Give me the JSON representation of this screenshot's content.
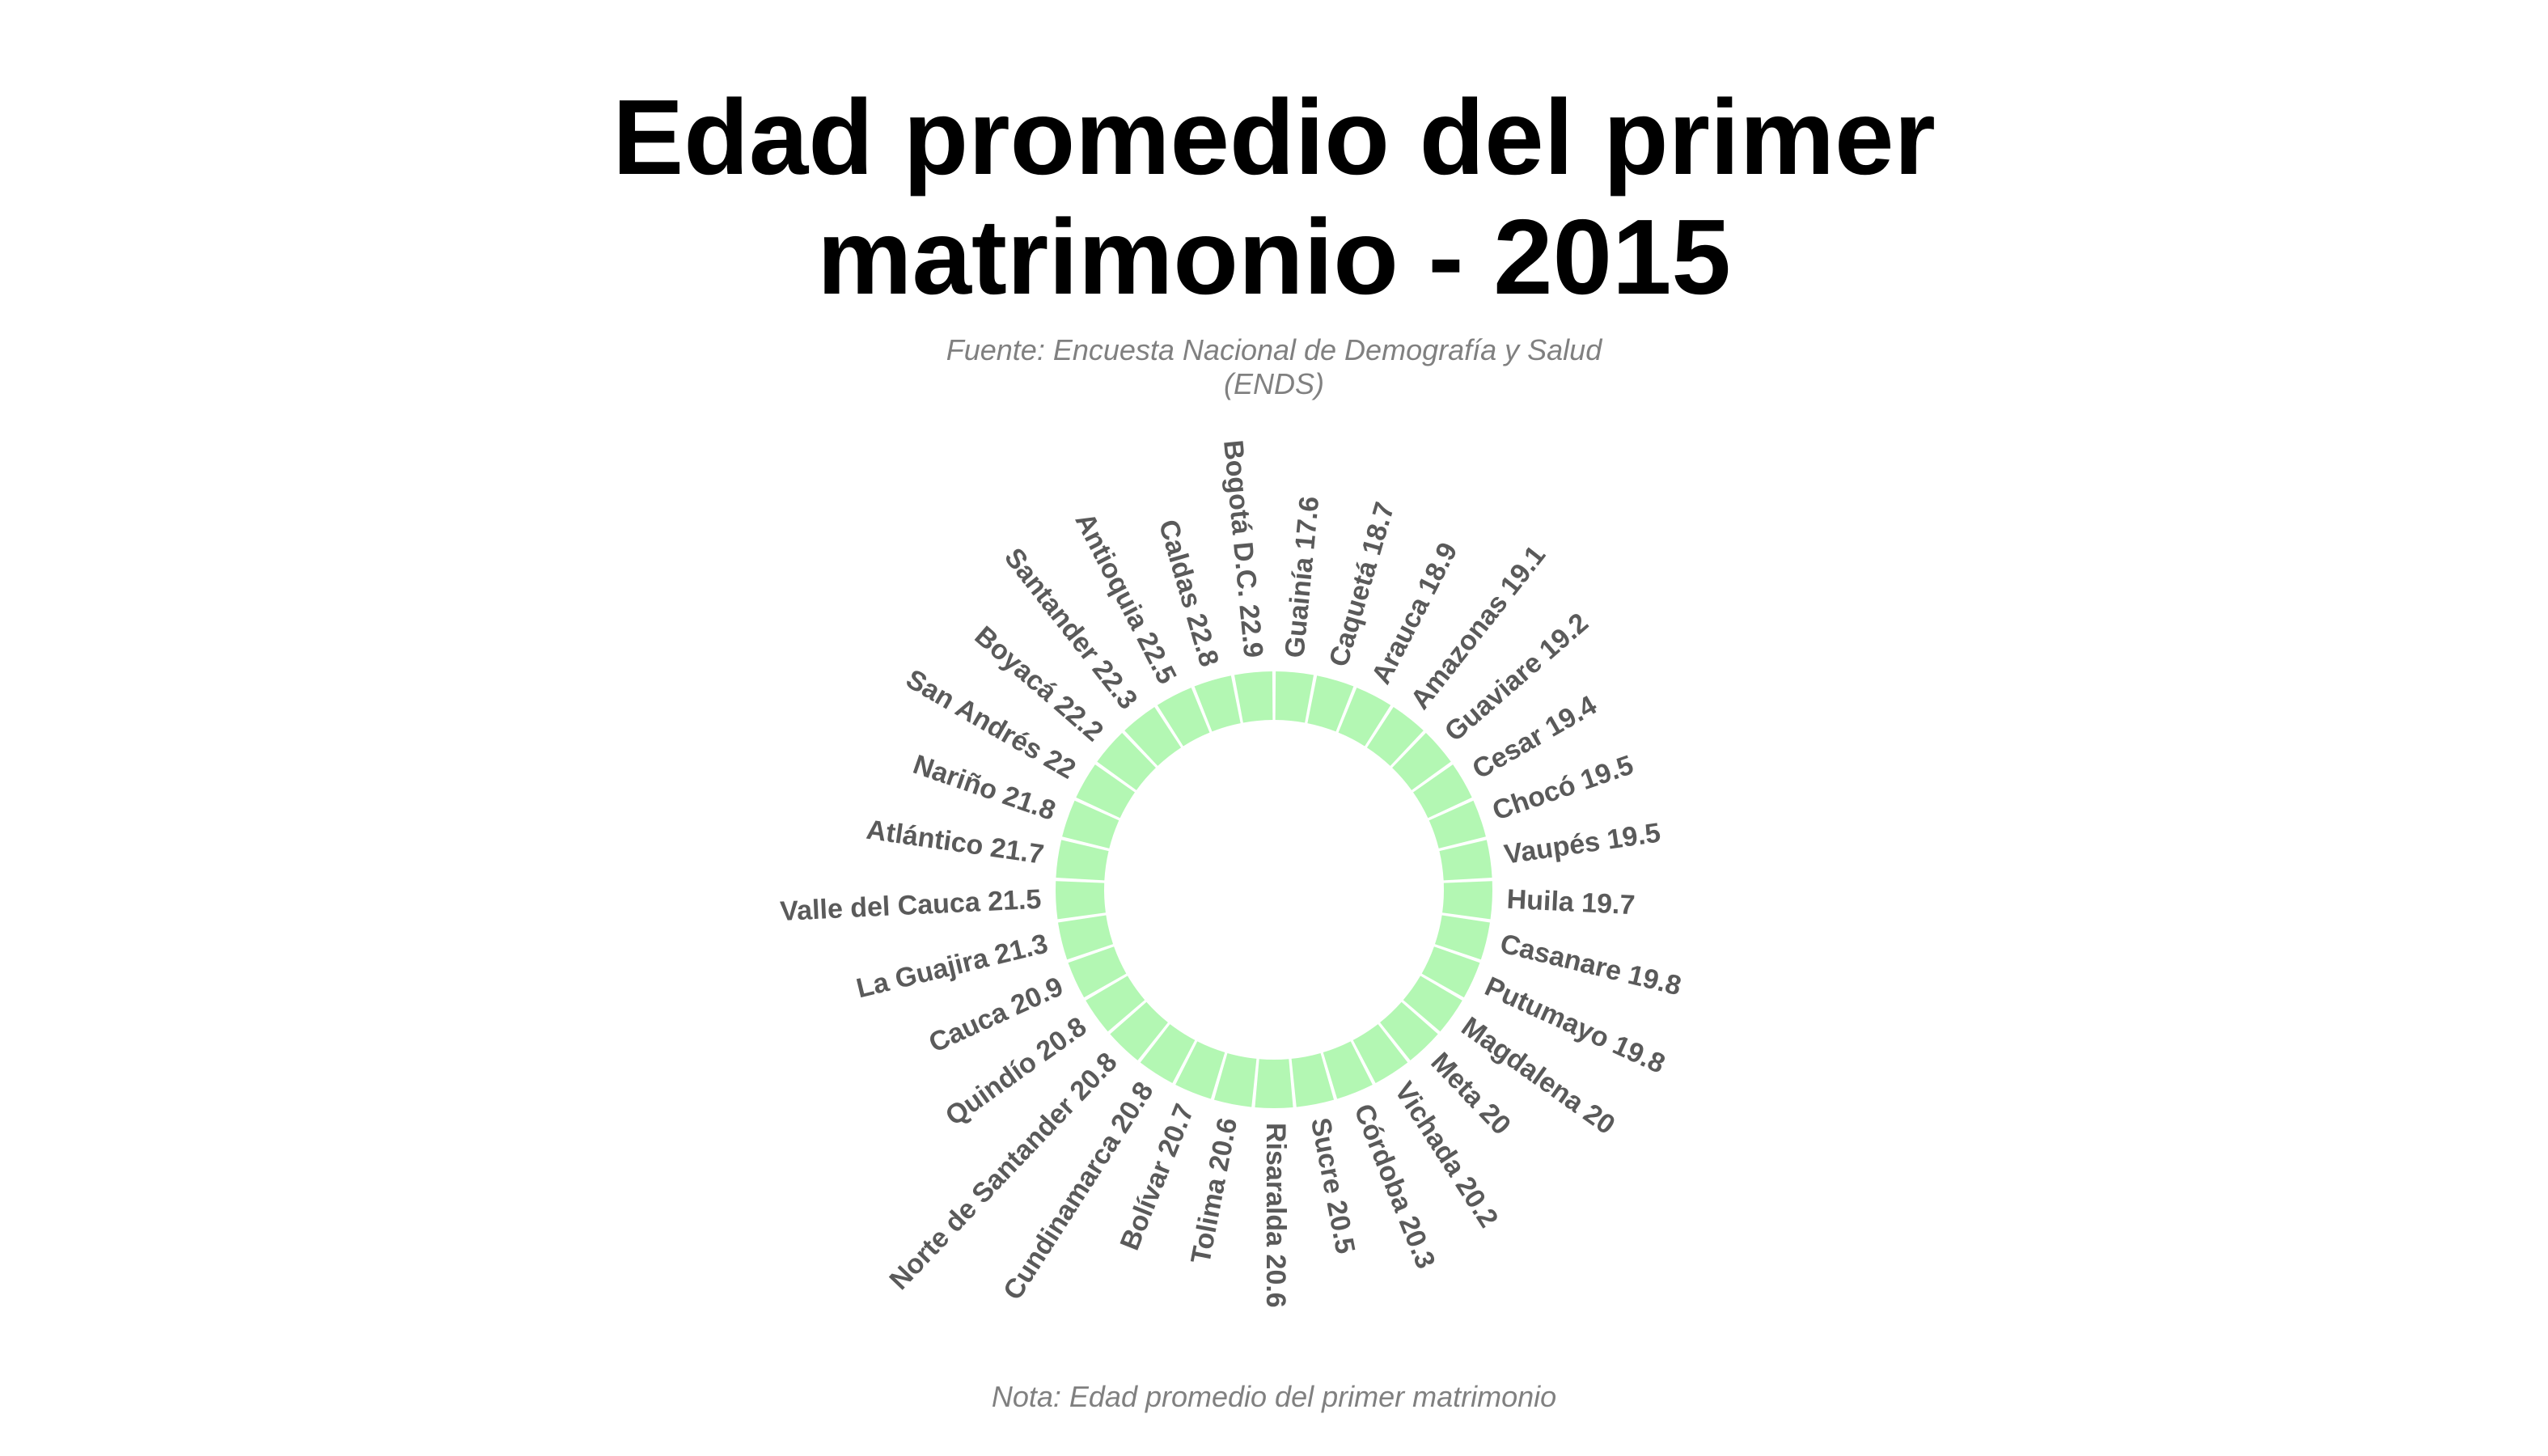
{
  "title_lines": [
    "Edad promedio del primer",
    "matrimonio - 2015"
  ],
  "subtitle_lines": [
    "Fuente: Encuesta Nacional de Demografía y Salud",
    "(ENDS)"
  ],
  "caption": "Nota: Edad promedio del primer matrimonio",
  "colors": {
    "bar": "#b3f7b3",
    "bar_gap": "#ffffff",
    "label": "#5a5a5a",
    "title": "#000000",
    "subtitle": "#808080"
  },
  "chart_data": {
    "type": "bar",
    "coordinate_system": "polar",
    "value_label": "Edad promedio del primer matrimonio",
    "categories": [
      "Guainía",
      "Caquetá",
      "Arauca",
      "Amazonas",
      "Guaviare",
      "Cesar",
      "Chocó",
      "Vaupés",
      "Huila",
      "Casanare",
      "Putumayo",
      "Magdalena",
      "Meta",
      "Vichada",
      "Córdoba",
      "Sucre",
      "Risaralda",
      "Tolima",
      "Bolívar",
      "Cundinamarca",
      "Norte de Santander",
      "Quindío",
      "Cauca",
      "La Guajira",
      "Valle del Cauca",
      "Atlántico",
      "Nariño",
      "San Andrés",
      "Boyacá",
      "Santander",
      "Antioquia",
      "Caldas",
      "Bogotá D.C."
    ],
    "values": [
      17.6,
      18.7,
      18.9,
      19.1,
      19.2,
      19.4,
      19.5,
      19.5,
      19.7,
      19.8,
      19.8,
      20,
      20,
      20.2,
      20.3,
      20.5,
      20.6,
      20.6,
      20.7,
      20.8,
      20.8,
      20.8,
      20.9,
      21.3,
      21.5,
      21.7,
      21.8,
      22,
      22.2,
      22.3,
      22.5,
      22.8,
      22.9
    ],
    "point_labels": [
      "Guainía 17.6",
      "Caquetá 18.7",
      "Arauca 18.9",
      "Amazonas 19.1",
      "Guaviare 19.2",
      "Cesar 19.4",
      "Chocó 19.5",
      "Vaupés 19.5",
      "Huila 19.7",
      "Casanare 19.8",
      "Putumayo 19.8",
      "Magdalena 20",
      "Meta 20",
      "Vichada 20.2",
      "Córdoba 20.3",
      "Sucre 20.5",
      "Risaralda 20.6",
      "Tolima 20.6",
      "Bolívar 20.7",
      "Cundinamarca 20.8",
      "Norte de Santander 20.8",
      "Quindío 20.8",
      "Cauca 20.9",
      "La Guajira 21.3",
      "Valle del Cauca 21.5",
      "Atlántico 21.7",
      "Nariño 21.8",
      "San Andrés 22",
      "Boyacá 22.2",
      "Santander 22.3",
      "Antioquia 22.5",
      "Caldas 22.8",
      "Bogotá D.C. 22.9"
    ],
    "legend": "none",
    "grid": false
  }
}
